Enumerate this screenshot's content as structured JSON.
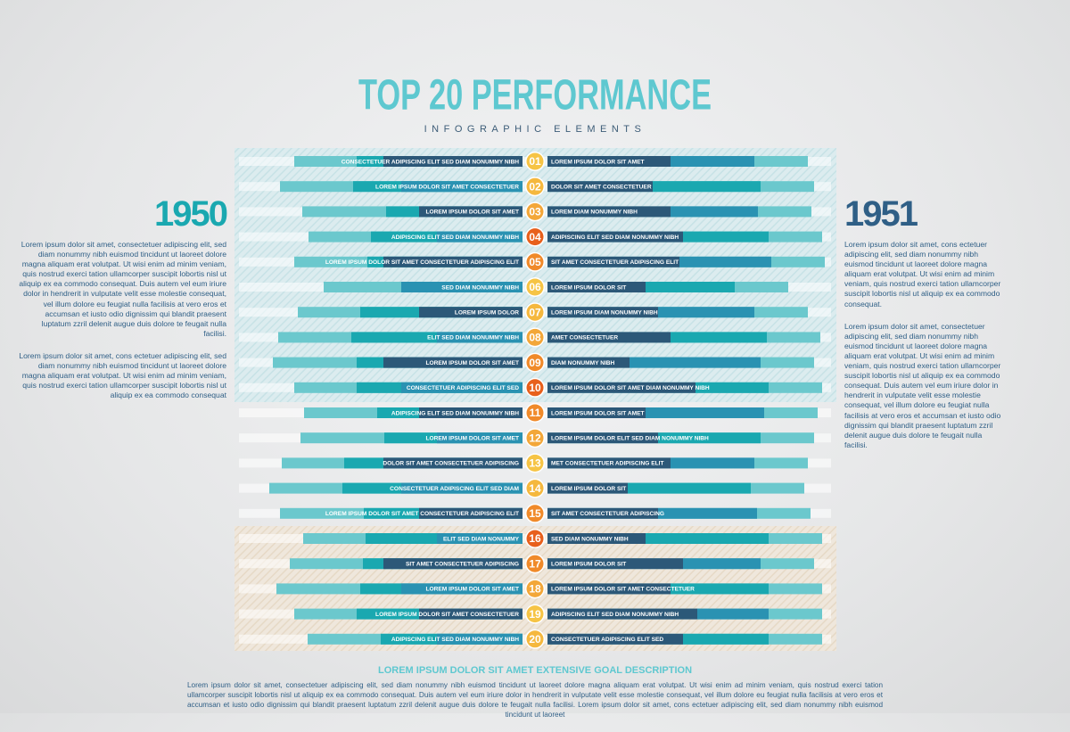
{
  "header": {
    "title": "TOP 20 PERFORMANCE",
    "subtitle": "INFOGRAPHIC ELEMENTS"
  },
  "left": {
    "year": "1950",
    "paragraphs": [
      "Lorem ipsum dolor sit amet, consectetuer adipiscing elit, sed diam nonummy nibh euismod tincidunt ut laoreet dolore magna aliquam erat volutpat. Ut wisi enim ad minim veniam, quis nostrud exerci tation ullamcorper suscipit lobortis nisl ut aliquip ex ea commodo consequat. Duis autem vel eum iriure dolor in hendrerit in vulputate velit esse molestie consequat, vel illum dolore eu feugiat nulla facilisis at vero eros et accumsan et iusto odio dignissim qui blandit praesent luptatum zzril delenit augue duis dolore te feugait nulla facilisi.",
      "Lorem ipsum dolor sit amet, cons ectetuer adipiscing elit, sed diam nonummy nibh euismod tincidunt ut laoreet dolore magna aliquam erat volutpat. Ut wisi enim ad minim veniam, quis nostrud exerci tation ullamcorper suscipit lobortis nisl ut aliquip ex ea commodo consequat"
    ]
  },
  "right": {
    "year": "1951",
    "paragraphs": [
      "Lorem ipsum dolor sit amet, cons ectetuer adipiscing elit, sed diam nonummy nibh euismod tincidunt ut laoreet dolore magna aliquam erat volutpat. Ut wisi enim ad minim veniam, quis nostrud exerci tation ullamcorper suscipit lobortis nisl ut aliquip ex ea commodo consequat.",
      "Lorem ipsum dolor sit amet, consectetuer adipiscing elit, sed diam nonummy nibh euismod tincidunt ut laoreet dolore magna aliquam erat volutpat. Ut wisi enim ad minim veniam, quis nostrud exerci tation ullamcorper suscipit lobortis nisl ut aliquip ex ea commodo consequat. Duis autem vel eum iriure dolor in hendrerit in vulputate velit esse molestie consequat, vel illum dolore eu feugiat nulla facilisis at vero eros et accumsan et iusto odio dignissim qui blandit praesent luptatum zzril delenit augue duis dolore te feugait nulla facilisi."
    ]
  },
  "rows": [
    {
      "number": "01",
      "left": "CONSECTETUER ADIPISCING ELIT SED DIAM NONUMMY NIBH",
      "right": "LOREM IPSUM DOLOR SIT AMET"
    },
    {
      "number": "02",
      "left": "LOREM IPSUM DOLOR SIT AMET CONSECTETUER",
      "right": "DOLOR SIT AMET CONSECTETUER"
    },
    {
      "number": "03",
      "left": "LOREM IPSUM DOLOR SIT AMET",
      "right": "LOREM DIAM NONUMMY NIBH"
    },
    {
      "number": "04",
      "left": "ADIPISCING ELIT SED DIAM NONUMMY NIBH",
      "right": "ADIPISCING ELIT SED DIAM NONUMMY NIBH"
    },
    {
      "number": "05",
      "left": "LOREM IPSUM DOLOR SIT AMET CONSECTETUER ADIPISCING ELIT",
      "right": "SIT AMET CONSECTETUER ADIPISCING ELIT"
    },
    {
      "number": "06",
      "left": "SED DIAM NONUMMY NIBH",
      "right": "LOREM IPSUM DOLOR SIT"
    },
    {
      "number": "07",
      "left": "LOREM IPSUM DOLOR",
      "right": "LOREM IPSUM DIAM NONUMMY NIBH"
    },
    {
      "number": "08",
      "left": "ELIT SED DIAM NONUMMY NIBH",
      "right": "AMET CONSECTETUER"
    },
    {
      "number": "09",
      "left": "LOREM IPSUM DOLOR SIT AMET",
      "right": "DIAM NONUMMY NIBH"
    },
    {
      "number": "10",
      "left": "CONSECTETUER ADIPISCING ELIT SED",
      "right": "LOREM IPSUM DOLOR SIT AMET DIAM NONUMMY NIBH"
    },
    {
      "number": "11",
      "left": "ADIPISCING ELIT SED DIAM NONUMMY NIBH",
      "right": "LOREM IPSUM DOLOR SIT AMET"
    },
    {
      "number": "12",
      "left": "LOREM IPSUM DOLOR SIT AMET",
      "right": "LOREM IPSUM DOLOR ELIT SED DIAM NONUMMY NIBH"
    },
    {
      "number": "13",
      "left": "DOLOR SIT AMET CONSECTETUER ADIPISCING",
      "right": "MET CONSECTETUER ADIPISCING ELIT"
    },
    {
      "number": "14",
      "left": "CONSECTETUER ADIPISCING ELIT SED DIAM",
      "right": "LOREM IPSUM DOLOR SIT"
    },
    {
      "number": "15",
      "left": "LOREM IPSUM DOLOR SIT AMET CONSECTETUER ADIPISCING ELIT",
      "right": "SIT AMET CONSECTETUER ADIPISCING"
    },
    {
      "number": "16",
      "left": "ELIT SED DIAM NONUMMY",
      "right": "SED DIAM NONUMMY NIBH"
    },
    {
      "number": "17",
      "left": "SIT AMET CONSECTETUER ADIPISCING",
      "right": "LOREM IPSUM DOLOR SIT"
    },
    {
      "number": "18",
      "left": "LOREM IPSUM DOLOR SIT AMET",
      "right": "LOREM IPSUM DOLOR SIT AMET CONSECTETUER"
    },
    {
      "number": "19",
      "left": "LOREM IPSUM DOLOR SIT AMET CONSECTETUER",
      "right": "ADIPISCING ELIT SED DIAM NONUMMY NIBH"
    },
    {
      "number": "20",
      "left": "ADIPISCING ELIT SED DIAM NONUMMY NIBH",
      "right": "CONSECTETUER ADIPISCING ELIT SED"
    }
  ],
  "footer": {
    "heading": "LOREM IPSUM DOLOR SIT AMET EXTENSIVE GOAL DESCRIPTION",
    "text": "Lorem ipsum dolor sit amet, consectetuer adipiscing elit, sed diam nonummy nibh euismod tincidunt ut laoreet dolore magna aliquam erat volutpat. Ut wisi enim ad minim veniam, quis nostrud exerci tation ullamcorper suscipit lobortis nisl ut aliquip ex ea commodo consequat. Duis autem vel eum iriure dolor in hendrerit in vulputate velit esse molestie consequat, vel illum dolore eu feugiat nulla facilisis at vero eros et accumsan et iusto odio dignissim qui blandit praesent luptatum zzril delenit augue duis dolore te feugait nulla facilisi. Lorem ipsum dolor sit amet, cons ectetuer adipiscing elit, sed diam nonummy nibh euismod tincidunt ut laoreet"
  }
}
